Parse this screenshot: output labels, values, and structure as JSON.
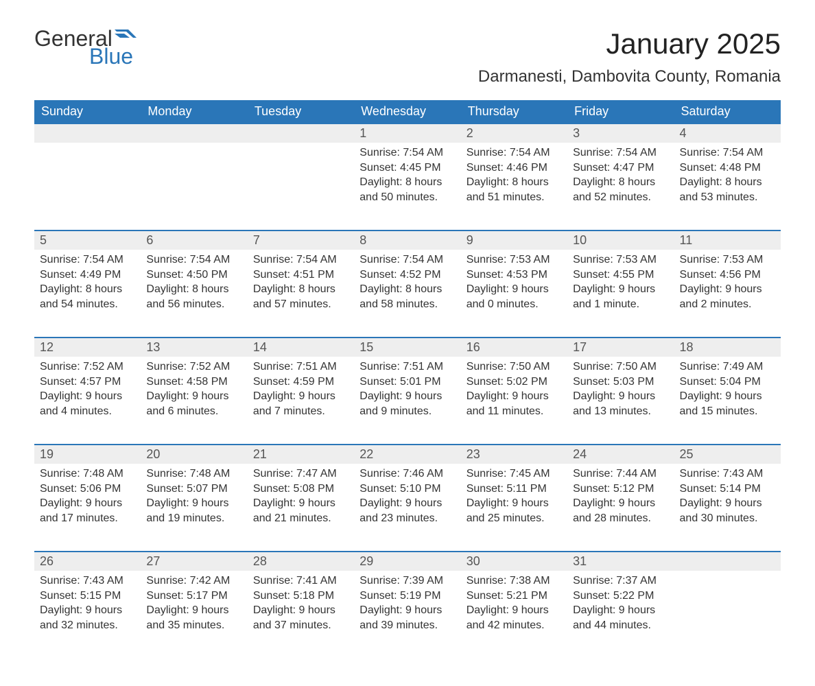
{
  "logo": {
    "general": "General",
    "blue": "Blue",
    "flag_color": "#2a76b8"
  },
  "title": "January 2025",
  "location": "Darmanesti, Dambovita County, Romania",
  "colors": {
    "header_bg": "#2a76b8",
    "header_text": "#ffffff",
    "daynum_bg": "#eeeeee",
    "row_border": "#2a76b8",
    "text": "#333333",
    "background": "#ffffff"
  },
  "day_headers": [
    "Sunday",
    "Monday",
    "Tuesday",
    "Wednesday",
    "Thursday",
    "Friday",
    "Saturday"
  ],
  "weeks": [
    [
      null,
      null,
      null,
      {
        "num": "1",
        "sunrise": "Sunrise: 7:54 AM",
        "sunset": "Sunset: 4:45 PM",
        "daylight1": "Daylight: 8 hours",
        "daylight2": "and 50 minutes."
      },
      {
        "num": "2",
        "sunrise": "Sunrise: 7:54 AM",
        "sunset": "Sunset: 4:46 PM",
        "daylight1": "Daylight: 8 hours",
        "daylight2": "and 51 minutes."
      },
      {
        "num": "3",
        "sunrise": "Sunrise: 7:54 AM",
        "sunset": "Sunset: 4:47 PM",
        "daylight1": "Daylight: 8 hours",
        "daylight2": "and 52 minutes."
      },
      {
        "num": "4",
        "sunrise": "Sunrise: 7:54 AM",
        "sunset": "Sunset: 4:48 PM",
        "daylight1": "Daylight: 8 hours",
        "daylight2": "and 53 minutes."
      }
    ],
    [
      {
        "num": "5",
        "sunrise": "Sunrise: 7:54 AM",
        "sunset": "Sunset: 4:49 PM",
        "daylight1": "Daylight: 8 hours",
        "daylight2": "and 54 minutes."
      },
      {
        "num": "6",
        "sunrise": "Sunrise: 7:54 AM",
        "sunset": "Sunset: 4:50 PM",
        "daylight1": "Daylight: 8 hours",
        "daylight2": "and 56 minutes."
      },
      {
        "num": "7",
        "sunrise": "Sunrise: 7:54 AM",
        "sunset": "Sunset: 4:51 PM",
        "daylight1": "Daylight: 8 hours",
        "daylight2": "and 57 minutes."
      },
      {
        "num": "8",
        "sunrise": "Sunrise: 7:54 AM",
        "sunset": "Sunset: 4:52 PM",
        "daylight1": "Daylight: 8 hours",
        "daylight2": "and 58 minutes."
      },
      {
        "num": "9",
        "sunrise": "Sunrise: 7:53 AM",
        "sunset": "Sunset: 4:53 PM",
        "daylight1": "Daylight: 9 hours",
        "daylight2": "and 0 minutes."
      },
      {
        "num": "10",
        "sunrise": "Sunrise: 7:53 AM",
        "sunset": "Sunset: 4:55 PM",
        "daylight1": "Daylight: 9 hours",
        "daylight2": "and 1 minute."
      },
      {
        "num": "11",
        "sunrise": "Sunrise: 7:53 AM",
        "sunset": "Sunset: 4:56 PM",
        "daylight1": "Daylight: 9 hours",
        "daylight2": "and 2 minutes."
      }
    ],
    [
      {
        "num": "12",
        "sunrise": "Sunrise: 7:52 AM",
        "sunset": "Sunset: 4:57 PM",
        "daylight1": "Daylight: 9 hours",
        "daylight2": "and 4 minutes."
      },
      {
        "num": "13",
        "sunrise": "Sunrise: 7:52 AM",
        "sunset": "Sunset: 4:58 PM",
        "daylight1": "Daylight: 9 hours",
        "daylight2": "and 6 minutes."
      },
      {
        "num": "14",
        "sunrise": "Sunrise: 7:51 AM",
        "sunset": "Sunset: 4:59 PM",
        "daylight1": "Daylight: 9 hours",
        "daylight2": "and 7 minutes."
      },
      {
        "num": "15",
        "sunrise": "Sunrise: 7:51 AM",
        "sunset": "Sunset: 5:01 PM",
        "daylight1": "Daylight: 9 hours",
        "daylight2": "and 9 minutes."
      },
      {
        "num": "16",
        "sunrise": "Sunrise: 7:50 AM",
        "sunset": "Sunset: 5:02 PM",
        "daylight1": "Daylight: 9 hours",
        "daylight2": "and 11 minutes."
      },
      {
        "num": "17",
        "sunrise": "Sunrise: 7:50 AM",
        "sunset": "Sunset: 5:03 PM",
        "daylight1": "Daylight: 9 hours",
        "daylight2": "and 13 minutes."
      },
      {
        "num": "18",
        "sunrise": "Sunrise: 7:49 AM",
        "sunset": "Sunset: 5:04 PM",
        "daylight1": "Daylight: 9 hours",
        "daylight2": "and 15 minutes."
      }
    ],
    [
      {
        "num": "19",
        "sunrise": "Sunrise: 7:48 AM",
        "sunset": "Sunset: 5:06 PM",
        "daylight1": "Daylight: 9 hours",
        "daylight2": "and 17 minutes."
      },
      {
        "num": "20",
        "sunrise": "Sunrise: 7:48 AM",
        "sunset": "Sunset: 5:07 PM",
        "daylight1": "Daylight: 9 hours",
        "daylight2": "and 19 minutes."
      },
      {
        "num": "21",
        "sunrise": "Sunrise: 7:47 AM",
        "sunset": "Sunset: 5:08 PM",
        "daylight1": "Daylight: 9 hours",
        "daylight2": "and 21 minutes."
      },
      {
        "num": "22",
        "sunrise": "Sunrise: 7:46 AM",
        "sunset": "Sunset: 5:10 PM",
        "daylight1": "Daylight: 9 hours",
        "daylight2": "and 23 minutes."
      },
      {
        "num": "23",
        "sunrise": "Sunrise: 7:45 AM",
        "sunset": "Sunset: 5:11 PM",
        "daylight1": "Daylight: 9 hours",
        "daylight2": "and 25 minutes."
      },
      {
        "num": "24",
        "sunrise": "Sunrise: 7:44 AM",
        "sunset": "Sunset: 5:12 PM",
        "daylight1": "Daylight: 9 hours",
        "daylight2": "and 28 minutes."
      },
      {
        "num": "25",
        "sunrise": "Sunrise: 7:43 AM",
        "sunset": "Sunset: 5:14 PM",
        "daylight1": "Daylight: 9 hours",
        "daylight2": "and 30 minutes."
      }
    ],
    [
      {
        "num": "26",
        "sunrise": "Sunrise: 7:43 AM",
        "sunset": "Sunset: 5:15 PM",
        "daylight1": "Daylight: 9 hours",
        "daylight2": "and 32 minutes."
      },
      {
        "num": "27",
        "sunrise": "Sunrise: 7:42 AM",
        "sunset": "Sunset: 5:17 PM",
        "daylight1": "Daylight: 9 hours",
        "daylight2": "and 35 minutes."
      },
      {
        "num": "28",
        "sunrise": "Sunrise: 7:41 AM",
        "sunset": "Sunset: 5:18 PM",
        "daylight1": "Daylight: 9 hours",
        "daylight2": "and 37 minutes."
      },
      {
        "num": "29",
        "sunrise": "Sunrise: 7:39 AM",
        "sunset": "Sunset: 5:19 PM",
        "daylight1": "Daylight: 9 hours",
        "daylight2": "and 39 minutes."
      },
      {
        "num": "30",
        "sunrise": "Sunrise: 7:38 AM",
        "sunset": "Sunset: 5:21 PM",
        "daylight1": "Daylight: 9 hours",
        "daylight2": "and 42 minutes."
      },
      {
        "num": "31",
        "sunrise": "Sunrise: 7:37 AM",
        "sunset": "Sunset: 5:22 PM",
        "daylight1": "Daylight: 9 hours",
        "daylight2": "and 44 minutes."
      },
      null
    ]
  ]
}
